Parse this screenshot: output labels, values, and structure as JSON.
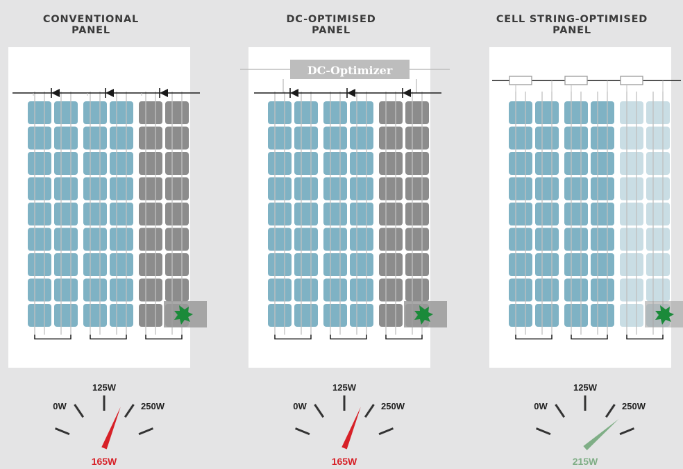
{
  "colors": {
    "background": "#e4e4e5",
    "cell_active": "#7fb2c4",
    "cell_shaded": "#8c8c8c",
    "cell_faded": "#c9dde4",
    "wire": "#c0c0c0",
    "busbar": "#1a1a1a",
    "needle_low": "#d72027",
    "needle_high": "#7fae86",
    "leaf": "#1b8a3a",
    "optimizer_box": "#bdbdbd"
  },
  "panels": [
    {
      "title_line1": "CONVENTIONAL",
      "title_line2": "PANEL",
      "kind": "conventional",
      "optimizer_label": "",
      "gauge": {
        "min_label": "0W",
        "mid_label": "125W",
        "max_label": "250W",
        "value": 165,
        "value_label": "165W",
        "color": "#d72027"
      }
    },
    {
      "title_line1": "DC-OPTIMISED",
      "title_line2": "PANEL",
      "kind": "dc-optimised",
      "optimizer_label": "DC-Optimizer",
      "gauge": {
        "min_label": "0W",
        "mid_label": "125W",
        "max_label": "250W",
        "value": 165,
        "value_label": "165W",
        "color": "#d72027"
      }
    },
    {
      "title_line1": "CELL STRING-OPTIMISED",
      "title_line2": "PANEL",
      "kind": "string-optimised",
      "optimizer_label": "",
      "gauge": {
        "min_label": "0W",
        "mid_label": "125W",
        "max_label": "250W",
        "value": 215,
        "value_label": "215W",
        "color": "#7fae86"
      }
    }
  ]
}
